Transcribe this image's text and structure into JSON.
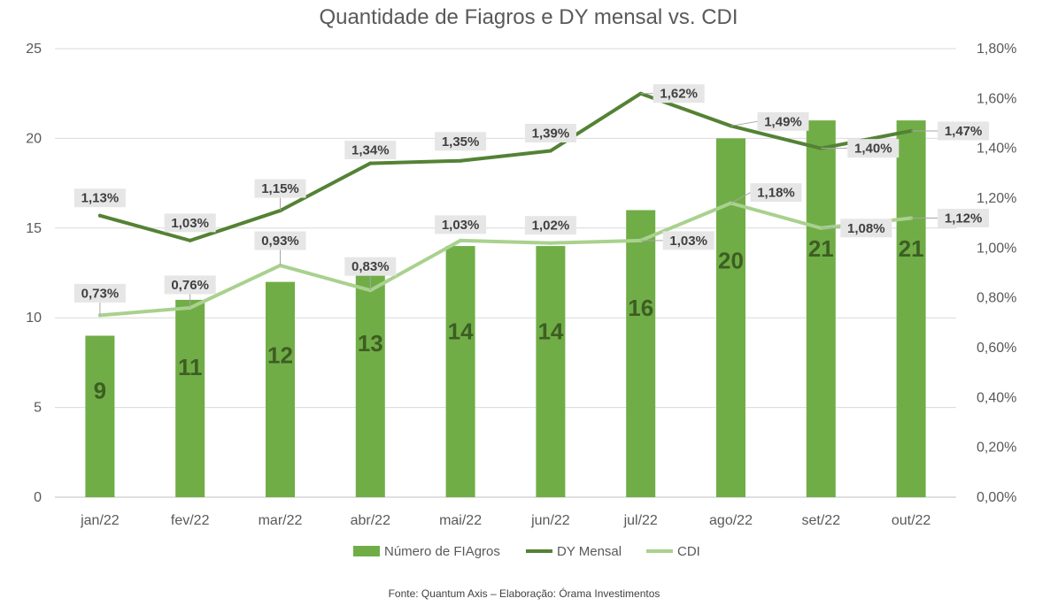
{
  "chart_data": {
    "type": "bar",
    "title": "Quantidade de Fiagros e DY mensal vs. CDI",
    "categories": [
      "jan/22",
      "fev/22",
      "mar/22",
      "abr/22",
      "mai/22",
      "jun/22",
      "jul/22",
      "ago/22",
      "set/22",
      "out/22"
    ],
    "series": [
      {
        "name": "Número de FIAgros",
        "type": "bar",
        "axis": "left",
        "color": "#70ad47",
        "values": [
          9,
          11,
          12,
          13,
          14,
          14,
          16,
          20,
          21,
          21
        ],
        "labels": [
          "9",
          "11",
          "12",
          "13",
          "14",
          "14",
          "16",
          "20",
          "21",
          "21"
        ]
      },
      {
        "name": "DY Mensal",
        "type": "line",
        "axis": "right",
        "color": "#548235",
        "values": [
          1.13,
          1.03,
          1.15,
          1.34,
          1.35,
          1.39,
          1.62,
          1.49,
          1.4,
          1.47
        ],
        "labels": [
          "1,13%",
          "1,03%",
          "1,15%",
          "1,34%",
          "1,35%",
          "1,39%",
          "1,62%",
          "1,49%",
          "1,40%",
          "1,47%"
        ]
      },
      {
        "name": "CDI",
        "type": "line",
        "axis": "right",
        "color": "#a9d18e",
        "values": [
          0.73,
          0.76,
          0.93,
          0.83,
          1.03,
          1.02,
          1.03,
          1.18,
          1.08,
          1.12
        ],
        "labels": [
          "0,73%",
          "0,76%",
          "0,93%",
          "0,83%",
          "1,03%",
          "1,02%",
          "1,03%",
          "1,18%",
          "1,08%",
          "1,12%"
        ]
      }
    ],
    "y_left": {
      "min": 0,
      "max": 25,
      "ticks": [
        "0",
        "5",
        "10",
        "15",
        "20",
        "25"
      ],
      "tick_values": [
        0,
        5,
        10,
        15,
        20,
        25
      ]
    },
    "y_right": {
      "min": 0,
      "max": 1.8,
      "ticks": [
        "0,00%",
        "0,20%",
        "0,40%",
        "0,60%",
        "0,80%",
        "1,00%",
        "1,20%",
        "1,40%",
        "1,60%",
        "1,80%"
      ],
      "tick_values": [
        0,
        0.2,
        0.4,
        0.6,
        0.8,
        1.0,
        1.2,
        1.4,
        1.6,
        1.8
      ]
    },
    "grid": true,
    "legend_position": "bottom"
  },
  "source": "Fonte: Quantum Axis – Elaboração: Órama Investimentos"
}
